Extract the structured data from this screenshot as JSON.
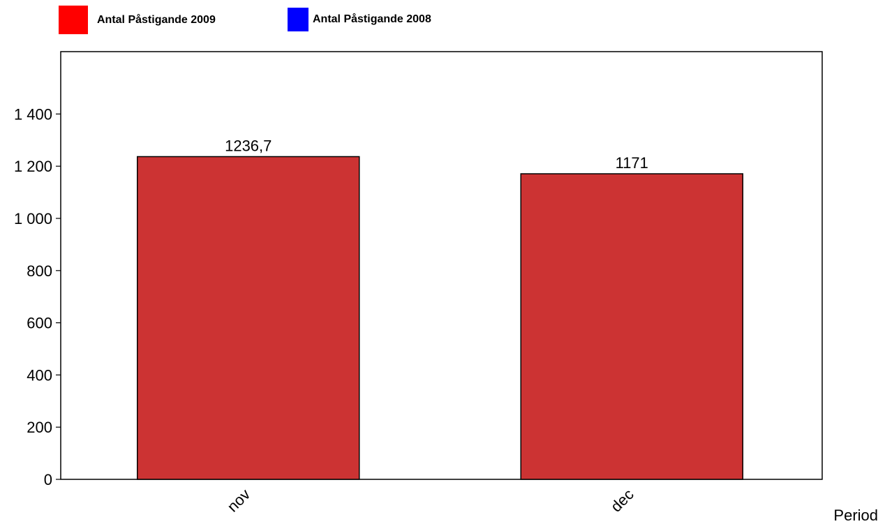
{
  "legend": {
    "items": [
      {
        "label": "Antal Påstigande 2009",
        "color": "#ff0000"
      },
      {
        "label": "Antal Påstigande 2008",
        "color": "#0000ff"
      }
    ]
  },
  "chart_data": {
    "type": "bar",
    "categories": [
      "nov",
      "dec"
    ],
    "series": [
      {
        "name": "Antal Påstigande 2009",
        "values": [
          1236.7,
          1171
        ],
        "value_labels": [
          "1236,7",
          "1171"
        ],
        "color": "#cc3333"
      }
    ],
    "xlabel": "Period",
    "ylabel": "",
    "ylim": [
      0,
      1600
    ],
    "yticks": [
      0,
      200,
      400,
      600,
      800,
      1000,
      1200,
      1400
    ],
    "ytick_labels": [
      "0",
      "200",
      "400",
      "600",
      "800",
      "1 000",
      "1 200",
      "1 400"
    ],
    "grid": false,
    "legend_position": "top-left"
  }
}
